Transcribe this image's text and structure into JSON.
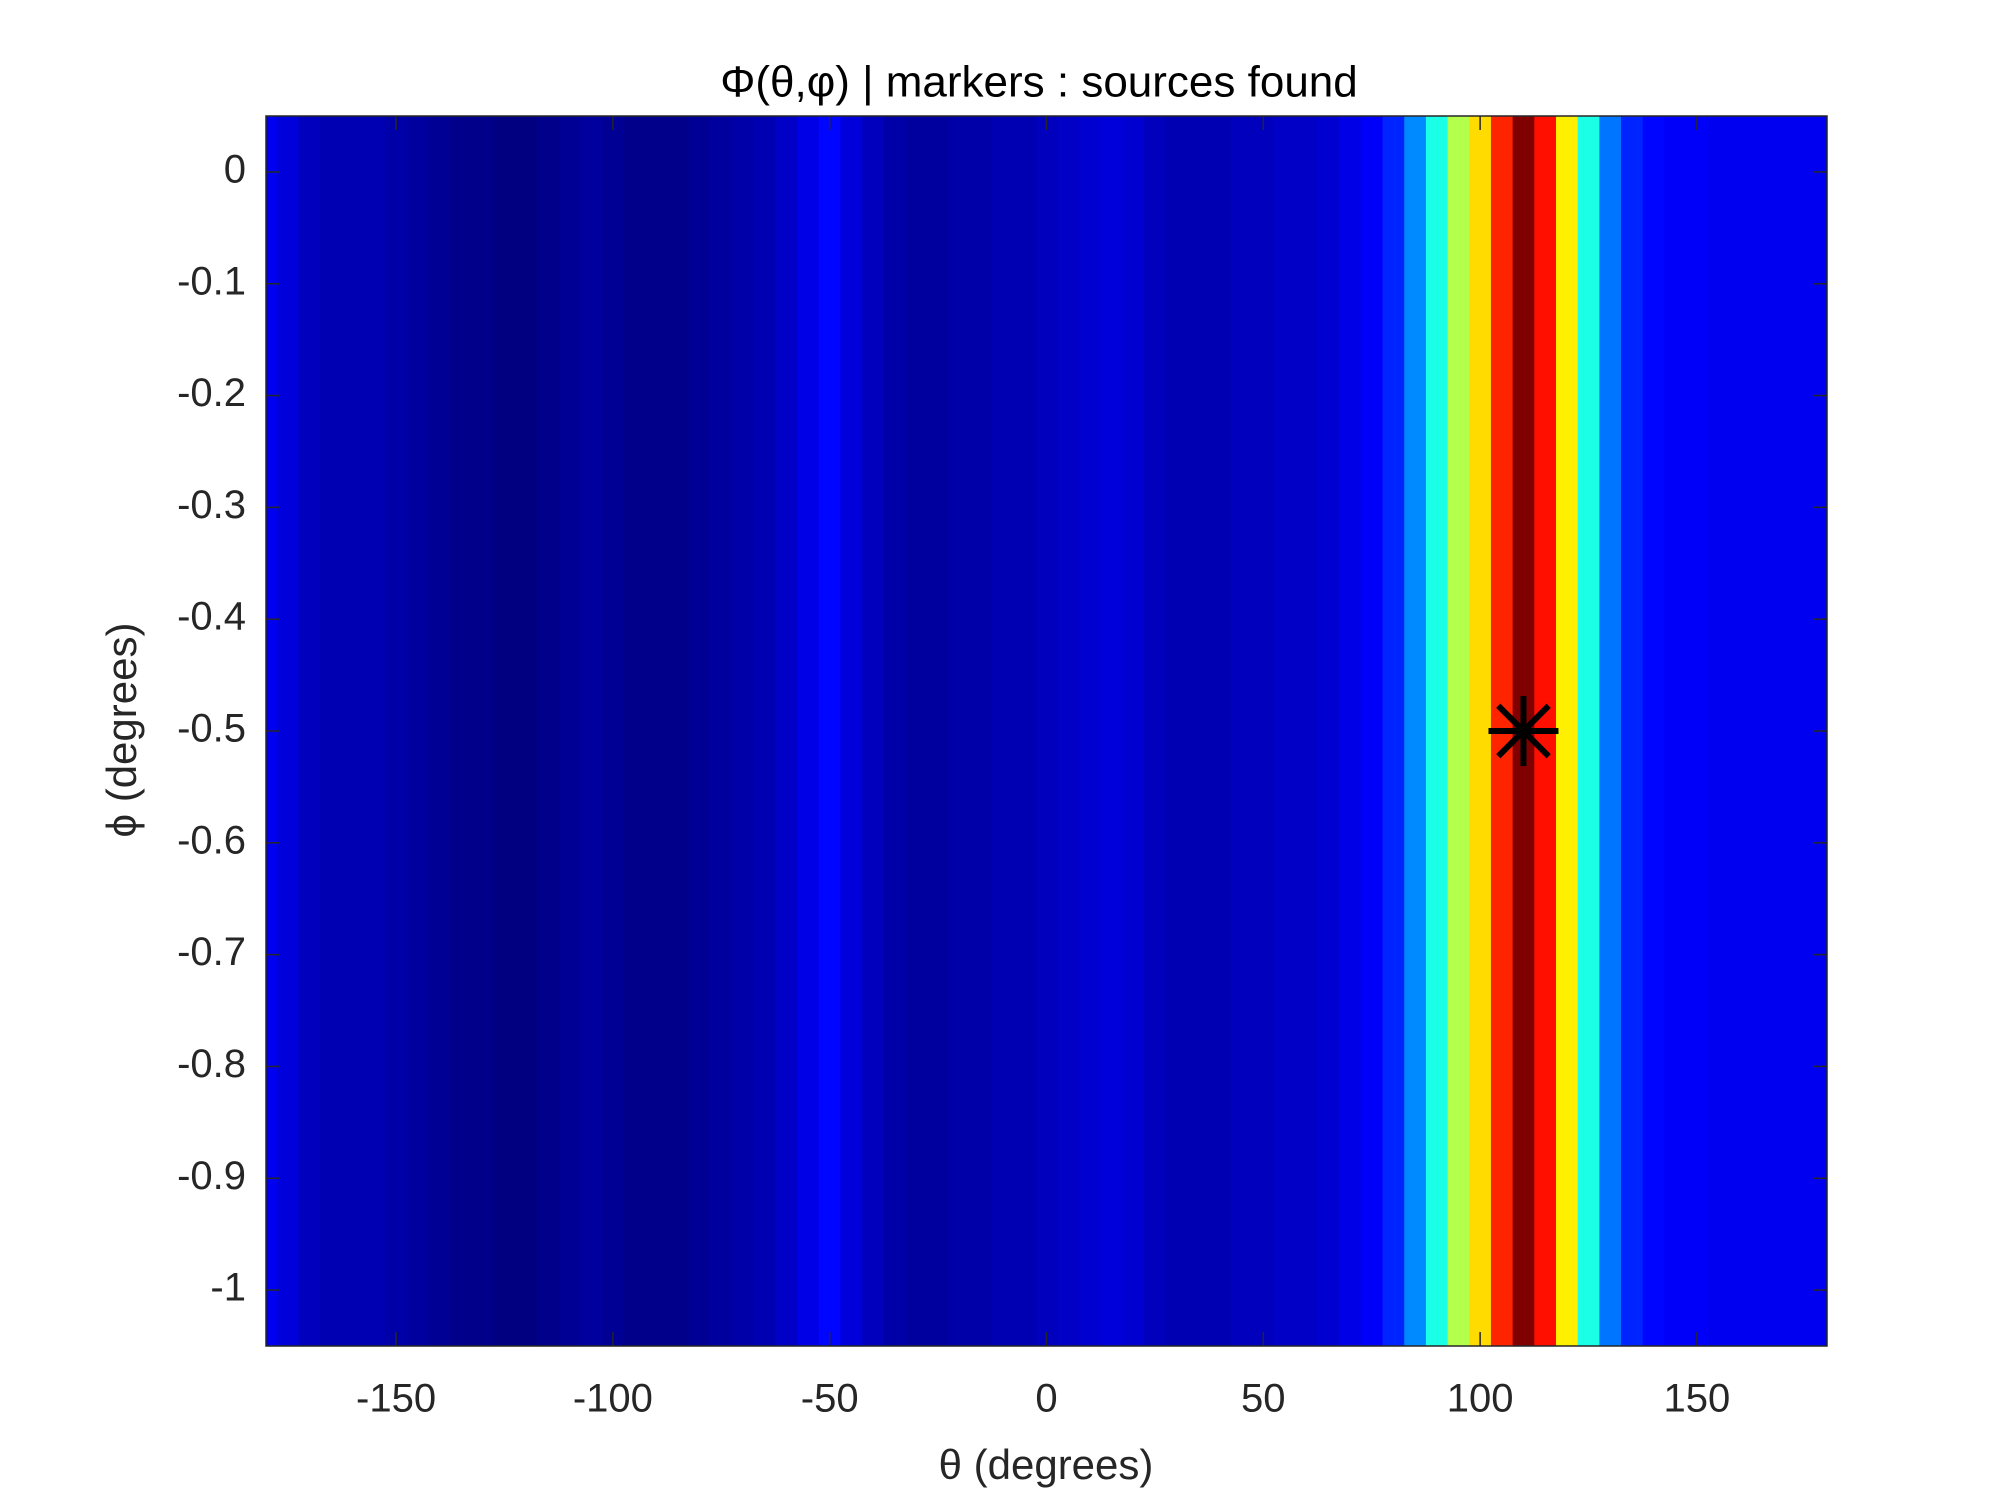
{
  "chart_data": {
    "type": "heatmap",
    "title": "Φ(θ,φ)   |  markers : sources found",
    "x_label": "θ (degrees)",
    "y_label": "ϕ (degrees)",
    "colormap": "jet",
    "x": [
      -180,
      -175,
      -170,
      -165,
      -160,
      -155,
      -150,
      -145,
      -140,
      -135,
      -130,
      -125,
      -120,
      -115,
      -110,
      -105,
      -100,
      -95,
      -90,
      -85,
      -80,
      -75,
      -70,
      -65,
      -60,
      -55,
      -50,
      -45,
      -40,
      -35,
      -30,
      -25,
      -20,
      -15,
      -10,
      -5,
      0,
      5,
      10,
      15,
      20,
      25,
      30,
      35,
      40,
      45,
      50,
      55,
      60,
      65,
      70,
      75,
      80,
      85,
      90,
      95,
      100,
      105,
      110,
      115,
      120,
      125,
      130,
      135,
      140,
      145,
      150,
      155,
      160,
      165,
      170,
      175,
      180
    ],
    "values": [
      0.11,
      0.09,
      0.06,
      0.05,
      0.05,
      0.05,
      0.04,
      0.03,
      0.02,
      0.01,
      0.01,
      0.0,
      0.0,
      0.01,
      0.02,
      0.03,
      0.02,
      0.01,
      0.01,
      0.01,
      0.02,
      0.03,
      0.04,
      0.05,
      0.07,
      0.1,
      0.13,
      0.09,
      0.06,
      0.04,
      0.03,
      0.03,
      0.04,
      0.04,
      0.05,
      0.05,
      0.06,
      0.07,
      0.08,
      0.09,
      0.08,
      0.06,
      0.05,
      0.05,
      0.05,
      0.06,
      0.06,
      0.07,
      0.07,
      0.08,
      0.1,
      0.12,
      0.16,
      0.26,
      0.4,
      0.55,
      0.66,
      0.84,
      1.0,
      0.86,
      0.64,
      0.4,
      0.24,
      0.16,
      0.13,
      0.12,
      0.12,
      0.11,
      0.11,
      0.11,
      0.11,
      0.11,
      0.11
    ],
    "markers": {
      "x": [
        110
      ],
      "y": [
        -0.5
      ],
      "color": "#000000"
    },
    "xlim": [
      -180,
      180
    ],
    "ylim": [
      -1.05,
      0.05
    ],
    "xticks": [
      -150,
      -100,
      -50,
      0,
      50,
      100,
      150
    ],
    "yticks": [
      0,
      -0.1,
      -0.2,
      -0.3,
      -0.4,
      -0.5,
      -0.6,
      -0.7,
      -0.8,
      -0.9,
      -1
    ]
  }
}
